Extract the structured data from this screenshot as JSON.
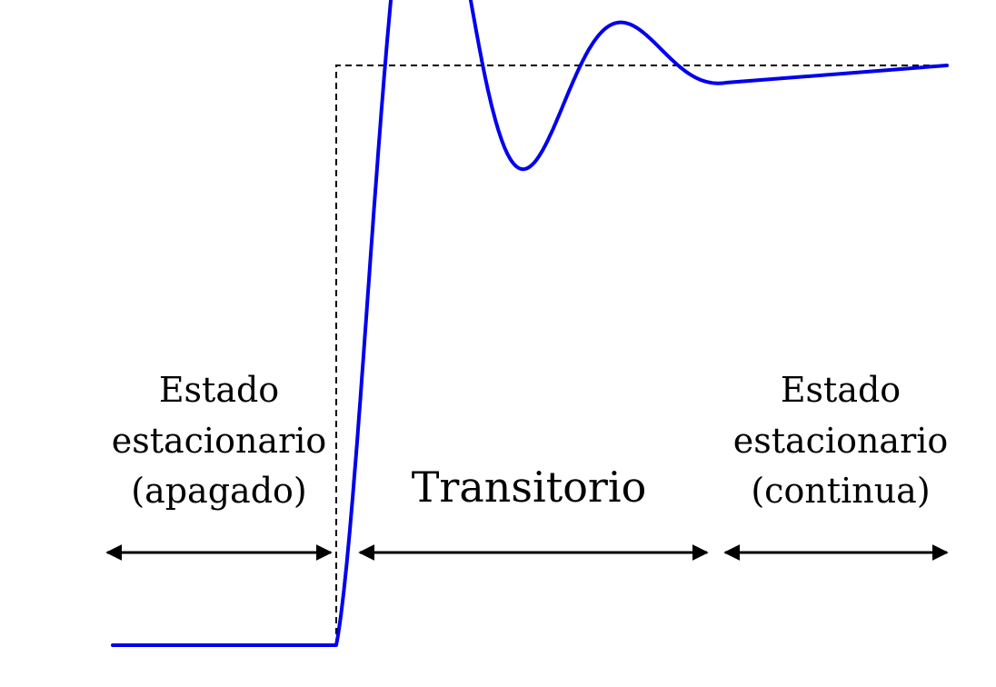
{
  "diagram": {
    "regions": {
      "left_state": {
        "line1": "Estado",
        "line2": "estacionario",
        "line3": "(apagado)"
      },
      "transient": {
        "label": "Transitorio"
      },
      "right_state": {
        "line1": "Estado",
        "line2": "estacionario",
        "line3": "(continua)"
      }
    },
    "colors": {
      "response_curve": "#0000ee",
      "step_input": "#000000",
      "arrows": "#000000",
      "background": "#ffffff"
    }
  }
}
